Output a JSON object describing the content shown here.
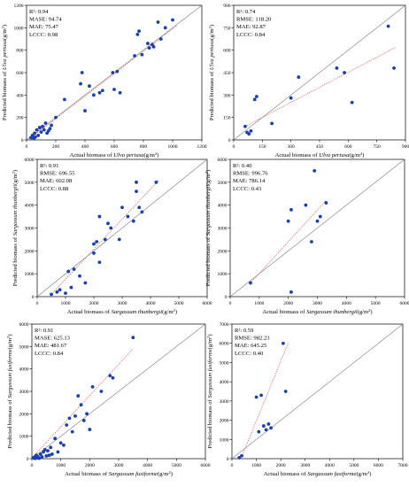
{
  "figure": {
    "colors": {
      "points": "#1a3fb0",
      "fit_line": "#e05a5a",
      "identity_line": "#7a7a7a",
      "axes": "#000000"
    },
    "superscript_r2": "2",
    "superscript_m2": "2",
    "xlabel_pre": "Actual biomass of ",
    "xlabel_unit": "(g/m",
    "xlabel_close": ")",
    "ylabel_pre": "Predicted biomass of ",
    "ylabel_unit": "(g/m",
    "ylabel_close": ")"
  },
  "chart_data": [
    {
      "type": "scatter",
      "species": "Ulva pertusa",
      "stats": [
        "R²: 0.94",
        "MASE: 94.74",
        "MAE: 75.47",
        "LCCC: 0.98"
      ],
      "xlim": [
        0,
        1200
      ],
      "ylim": [
        0,
        1200
      ],
      "xticks": [
        0,
        200,
        400,
        600,
        800,
        1000,
        1200
      ],
      "yticks": [
        0,
        200,
        400,
        600,
        800,
        1000,
        1200
      ],
      "fit": [
        [
          40,
          30
        ],
        [
          1030,
          1020
        ]
      ],
      "points": [
        [
          30,
          20
        ],
        [
          40,
          40
        ],
        [
          50,
          15
        ],
        [
          55,
          60
        ],
        [
          60,
          25
        ],
        [
          70,
          90
        ],
        [
          80,
          40
        ],
        [
          90,
          110
        ],
        [
          100,
          70
        ],
        [
          110,
          120
        ],
        [
          120,
          90
        ],
        [
          130,
          150
        ],
        [
          140,
          60
        ],
        [
          150,
          80
        ],
        [
          160,
          100
        ],
        [
          170,
          130
        ],
        [
          200,
          200
        ],
        [
          260,
          360
        ],
        [
          370,
          500
        ],
        [
          380,
          600
        ],
        [
          400,
          260
        ],
        [
          430,
          480
        ],
        [
          460,
          400
        ],
        [
          500,
          420
        ],
        [
          520,
          440
        ],
        [
          590,
          600
        ],
        [
          600,
          450
        ],
        [
          620,
          610
        ],
        [
          640,
          420
        ],
        [
          740,
          750
        ],
        [
          760,
          940
        ],
        [
          770,
          970
        ],
        [
          790,
          760
        ],
        [
          830,
          860
        ],
        [
          840,
          820
        ],
        [
          860,
          850
        ],
        [
          870,
          830
        ],
        [
          900,
          1050
        ],
        [
          920,
          900
        ],
        [
          950,
          1000
        ],
        [
          1000,
          1070
        ]
      ]
    },
    {
      "type": "scatter",
      "species": "Ulva pertusa",
      "stats": [
        "R²: 0.74",
        "RMSE: 118.20",
        "MAE: 92.87",
        "LCCC: 0.84"
      ],
      "xlim": [
        0,
        900
      ],
      "ylim": [
        0,
        900
      ],
      "xticks": [
        0,
        150,
        300,
        450,
        600,
        750,
        900
      ],
      "yticks": [
        0,
        150,
        300,
        450,
        600,
        750,
        900
      ],
      "fit": [
        [
          60,
          90
        ],
        [
          850,
          620
        ]
      ],
      "points": [
        [
          60,
          90
        ],
        [
          70,
          50
        ],
        [
          80,
          40
        ],
        [
          90,
          60
        ],
        [
          110,
          270
        ],
        [
          120,
          290
        ],
        [
          200,
          110
        ],
        [
          300,
          280
        ],
        [
          340,
          420
        ],
        [
          540,
          480
        ],
        [
          580,
          450
        ],
        [
          620,
          250
        ],
        [
          810,
          760
        ],
        [
          840,
          480
        ]
      ]
    },
    {
      "type": "scatter",
      "species": "Sargassum thunbergii",
      "stats": [
        "R²: 0.91",
        "RMSE: 696.55",
        "MAE: 602.08",
        "LCCC: 0.88"
      ],
      "xlim": [
        0,
        6000
      ],
      "ylim": [
        0,
        6000
      ],
      "xticks": [
        0,
        1000,
        2000,
        3000,
        4000,
        5000,
        6000
      ],
      "yticks": [
        0,
        1000,
        2000,
        3000,
        4000,
        5000,
        6000
      ],
      "fit": [
        [
          500,
          100
        ],
        [
          4300,
          5100
        ]
      ],
      "points": [
        [
          500,
          100
        ],
        [
          700,
          200
        ],
        [
          800,
          300
        ],
        [
          1000,
          150
        ],
        [
          1100,
          1100
        ],
        [
          1200,
          400
        ],
        [
          1300,
          1200
        ],
        [
          1500,
          900
        ],
        [
          1700,
          600
        ],
        [
          2000,
          1900
        ],
        [
          2000,
          2300
        ],
        [
          2100,
          2400
        ],
        [
          2200,
          1500
        ],
        [
          2200,
          3500
        ],
        [
          2400,
          2500
        ],
        [
          2500,
          3200
        ],
        [
          2600,
          3000
        ],
        [
          2900,
          2500
        ],
        [
          3000,
          3900
        ],
        [
          3200,
          3500
        ],
        [
          3400,
          3300
        ],
        [
          3500,
          5000
        ],
        [
          3500,
          4600
        ],
        [
          3600,
          3900
        ],
        [
          3700,
          3700
        ],
        [
          4200,
          5000
        ]
      ]
    },
    {
      "type": "scatter",
      "species": "Sargassum thunbergii",
      "stats": [
        "R²: 0.40",
        "RMSE: 996.76",
        "MAE: 786.14",
        "LCCC: 0.43"
      ],
      "xlim": [
        0,
        6000
      ],
      "ylim": [
        0,
        6000
      ],
      "xticks": [
        0,
        1000,
        2000,
        3000,
        4000,
        5000,
        6000
      ],
      "yticks": [
        0,
        1000,
        2000,
        3000,
        4000,
        5000,
        6000
      ],
      "fit": [
        [
          700,
          600
        ],
        [
          3300,
          4200
        ]
      ],
      "points": [
        [
          700,
          600
        ],
        [
          2000,
          3300
        ],
        [
          2100,
          3800
        ],
        [
          2100,
          200
        ],
        [
          2600,
          4000
        ],
        [
          2800,
          2400
        ],
        [
          2900,
          5500
        ],
        [
          3000,
          3300
        ],
        [
          3100,
          3500
        ],
        [
          3300,
          4100
        ]
      ]
    },
    {
      "type": "scatter",
      "species": "Sargassum fusiforme",
      "stats": [
        "R²: 0.91",
        "MASE: 625.13",
        "MAE: 481.67",
        "LCCC: 0.84"
      ],
      "xlim": [
        0,
        6000
      ],
      "ylim": [
        0,
        6000
      ],
      "xticks": [
        0,
        1000,
        2000,
        3000,
        4000,
        5000,
        6000
      ],
      "yticks": [
        0,
        1000,
        2000,
        3000,
        4000,
        5000,
        6000
      ],
      "fit": [
        [
          50,
          100
        ],
        [
          3500,
          4900
        ]
      ],
      "points": [
        [
          50,
          40
        ],
        [
          80,
          20
        ],
        [
          100,
          80
        ],
        [
          120,
          10
        ],
        [
          150,
          150
        ],
        [
          180,
          60
        ],
        [
          200,
          100
        ],
        [
          220,
          30
        ],
        [
          260,
          20
        ],
        [
          300,
          200
        ],
        [
          350,
          80
        ],
        [
          400,
          300
        ],
        [
          450,
          400
        ],
        [
          500,
          120
        ],
        [
          550,
          350
        ],
        [
          600,
          150
        ],
        [
          650,
          500
        ],
        [
          700,
          200
        ],
        [
          800,
          900
        ],
        [
          900,
          300
        ],
        [
          1000,
          700
        ],
        [
          1100,
          600
        ],
        [
          1200,
          1500
        ],
        [
          1300,
          1800
        ],
        [
          1400,
          1200
        ],
        [
          1500,
          1900
        ],
        [
          1600,
          2800
        ],
        [
          1700,
          2400
        ],
        [
          1800,
          1700
        ],
        [
          1900,
          2000
        ],
        [
          2000,
          1300
        ],
        [
          2100,
          3200
        ],
        [
          2400,
          3000
        ],
        [
          2700,
          3700
        ],
        [
          2800,
          3600
        ],
        [
          3500,
          5400
        ]
      ]
    },
    {
      "type": "scatter",
      "species": "Sargassum fusiforme",
      "stats": [
        "R²: 0.59",
        "RMSE: 982.23",
        "MAE: 645.25",
        "LCCC: 0.40"
      ],
      "xlim": [
        0,
        7000
      ],
      "ylim": [
        0,
        7000
      ],
      "xticks": [
        0,
        1000,
        2000,
        3000,
        4000,
        5000,
        6000,
        7000
      ],
      "yticks": [
        0,
        1000,
        2000,
        3000,
        4000,
        5000,
        6000,
        7000
      ],
      "fit": [
        [
          400,
          100
        ],
        [
          2300,
          6000
        ]
      ],
      "points": [
        [
          300,
          50
        ],
        [
          400,
          150
        ],
        [
          1000,
          3200
        ],
        [
          1100,
          1400
        ],
        [
          1200,
          3300
        ],
        [
          1300,
          1700
        ],
        [
          1400,
          1500
        ],
        [
          1500,
          1800
        ],
        [
          1600,
          1600
        ],
        [
          2100,
          6000
        ],
        [
          2200,
          3500
        ]
      ]
    }
  ]
}
